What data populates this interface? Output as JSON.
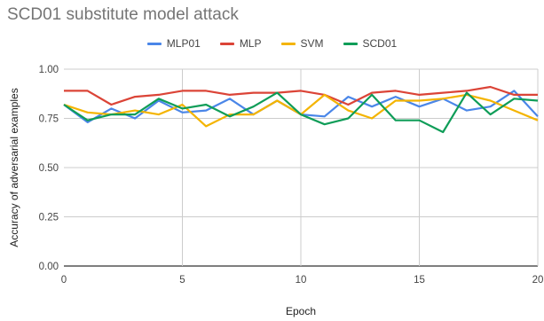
{
  "chart_data": {
    "type": "line",
    "title": "SCD01 substitute model attack",
    "xlabel": "Epoch",
    "ylabel": "Accuracy of adversarial examples",
    "xlim": [
      0,
      20
    ],
    "ylim": [
      0,
      1.0
    ],
    "x_ticks": [
      "0",
      "5",
      "10",
      "15",
      "20"
    ],
    "y_ticks": [
      "0.00",
      "0.25",
      "0.50",
      "0.75",
      "1.00"
    ],
    "grid": true,
    "legend_position": "top-center",
    "x": [
      0,
      1,
      2,
      3,
      4,
      5,
      6,
      7,
      8,
      9,
      10,
      11,
      12,
      13,
      14,
      15,
      16,
      17,
      18,
      19,
      20
    ],
    "series": [
      {
        "name": "MLP01",
        "color": "#4a86e8",
        "values": [
          0.82,
          0.73,
          0.8,
          0.75,
          0.84,
          0.78,
          0.79,
          0.85,
          0.77,
          0.84,
          0.77,
          0.76,
          0.86,
          0.81,
          0.86,
          0.81,
          0.85,
          0.79,
          0.81,
          0.89,
          0.76
        ]
      },
      {
        "name": "MLP",
        "color": "#db4437",
        "values": [
          0.89,
          0.89,
          0.82,
          0.86,
          0.87,
          0.89,
          0.89,
          0.87,
          0.88,
          0.88,
          0.89,
          0.87,
          0.82,
          0.88,
          0.89,
          0.87,
          0.88,
          0.89,
          0.91,
          0.87,
          0.87
        ]
      },
      {
        "name": "SVM",
        "color": "#f4b400",
        "values": [
          0.82,
          0.78,
          0.77,
          0.79,
          0.77,
          0.82,
          0.71,
          0.77,
          0.77,
          0.84,
          0.77,
          0.87,
          0.79,
          0.75,
          0.84,
          0.84,
          0.85,
          0.87,
          0.84,
          0.79,
          0.74
        ]
      },
      {
        "name": "SCD01",
        "color": "#0f9d58",
        "values": [
          0.82,
          0.74,
          0.77,
          0.77,
          0.85,
          0.8,
          0.82,
          0.76,
          0.81,
          0.88,
          0.77,
          0.72,
          0.75,
          0.87,
          0.74,
          0.74,
          0.68,
          0.88,
          0.77,
          0.85,
          0.84
        ]
      }
    ]
  }
}
